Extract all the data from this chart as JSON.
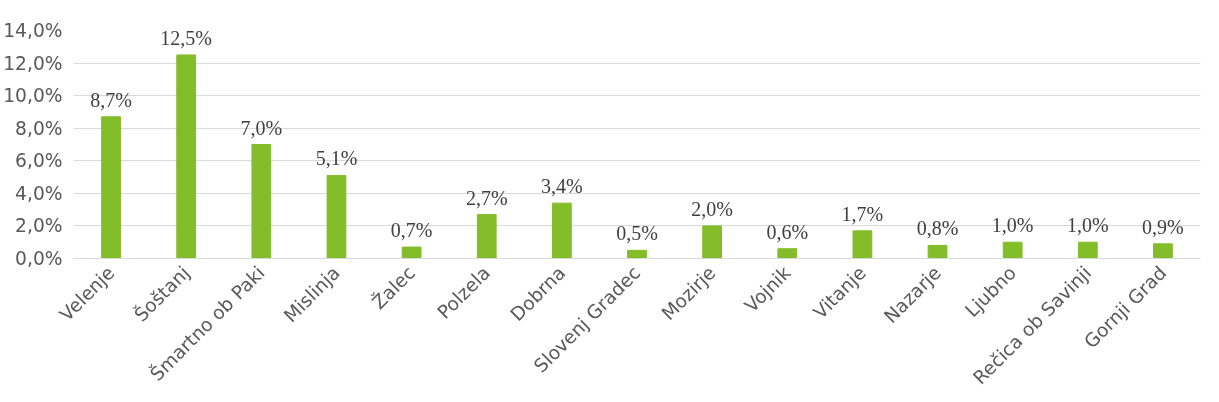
{
  "chart_data": {
    "type": "bar",
    "categories": [
      "Velenje",
      "Šoštanj",
      "Šmartno ob Paki",
      "Mislinja",
      "Žalec",
      "Polzela",
      "Dobrna",
      "Slovenj Gradec",
      "Mozirje",
      "Vojnik",
      "Vitanje",
      "Nazarje",
      "Ljubno",
      "Rečica ob Savinji",
      "Gornji Grad"
    ],
    "values": [
      8.7,
      12.5,
      7.0,
      5.1,
      0.7,
      2.7,
      3.4,
      0.5,
      2.0,
      0.6,
      1.7,
      0.8,
      1.0,
      1.0,
      0.9
    ],
    "value_labels": [
      "8,7%",
      "12,5%",
      "7,0%",
      "5,1%",
      "0,7%",
      "2,7%",
      "3,4%",
      "0,5%",
      "2,0%",
      "0,6%",
      "1,7%",
      "0,8%",
      "1,0%",
      "1,0%",
      "0,9%"
    ],
    "color": "#84bd2a",
    "ylim": [
      0,
      14
    ],
    "yticks": [
      {
        "value": 0,
        "label": "0,0%"
      },
      {
        "value": 2,
        "label": "2,0%"
      },
      {
        "value": 4,
        "label": "4,0%"
      },
      {
        "value": 6,
        "label": "6,0%"
      },
      {
        "value": 8,
        "label": "8,0%"
      },
      {
        "value": 10,
        "label": "10,0%"
      },
      {
        "value": 12,
        "label": "12,0%"
      },
      {
        "value": 14,
        "label": "14,0%"
      }
    ],
    "grid": "y"
  }
}
